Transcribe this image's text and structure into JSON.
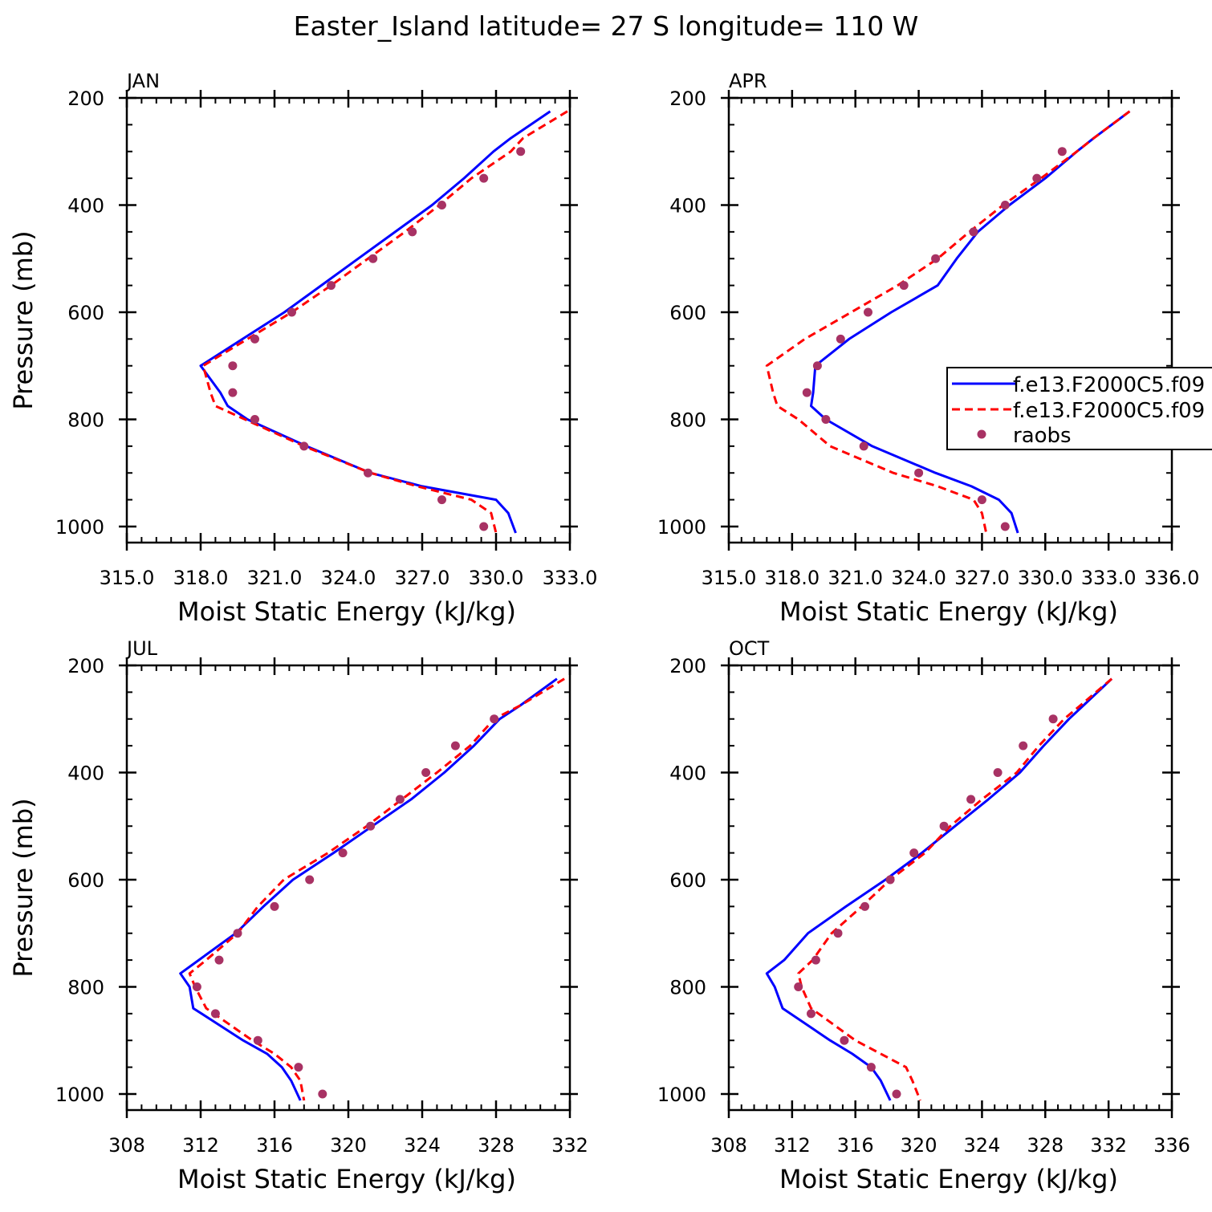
{
  "figure_title": "Easter_Island  latitude= 27 S longitude= 110 W",
  "legend": {
    "series": [
      {
        "label": "f.e13.F2000C5.f09",
        "style": "solid",
        "color": "#0000ff"
      },
      {
        "label": "f.e13.F2000C5.f09",
        "style": "dashed",
        "color": "#ff0000"
      },
      {
        "label": "raobs",
        "style": "dot",
        "color": "#a83264"
      }
    ]
  },
  "chart_data": [
    {
      "type": "line",
      "title": "JAN",
      "xlabel": "Moist Static Energy (kJ/kg)",
      "ylabel": "Pressure (mb)",
      "xlim": [
        315,
        333
      ],
      "ylim": [
        1030,
        200
      ],
      "xticks": [
        315,
        318,
        321,
        324,
        327,
        330,
        333
      ],
      "xticklabels": [
        "315.0",
        "318.0",
        "321.0",
        "324.0",
        "327.0",
        "330.0",
        "333.0"
      ],
      "yticks": [
        200,
        400,
        600,
        800,
        1000
      ],
      "yticklabels": [
        "200",
        "400",
        "600",
        "800",
        "1000"
      ],
      "series": [
        {
          "name": "f.e13.F2000C5.f09 (solid)",
          "p": [
            225,
            275,
            300,
            350,
            400,
            450,
            500,
            550,
            600,
            650,
            700,
            750,
            775,
            800,
            850,
            900,
            925,
            950,
            975,
            1012
          ],
          "mse": [
            332.2,
            330.6,
            329.9,
            328.7,
            327.4,
            325.9,
            324.4,
            322.9,
            321.4,
            319.7,
            318.0,
            318.8,
            319.1,
            319.9,
            322.3,
            324.9,
            327.0,
            330.0,
            330.5,
            330.8
          ]
        },
        {
          "name": "f.e13.F2000C5.f09 (dashed)",
          "p": [
            225,
            275,
            300,
            350,
            400,
            450,
            500,
            550,
            600,
            650,
            700,
            750,
            775,
            800,
            850,
            900,
            925,
            950,
            975,
            1012
          ],
          "mse": [
            332.9,
            331.1,
            330.6,
            329.0,
            327.7,
            326.3,
            324.8,
            323.3,
            321.7,
            319.9,
            318.1,
            318.4,
            318.6,
            319.8,
            322.2,
            324.9,
            326.8,
            329.0,
            329.8,
            330.0
          ]
        },
        {
          "name": "raobs",
          "p": [
            300,
            350,
            400,
            450,
            500,
            550,
            600,
            650,
            700,
            750,
            800,
            850,
            900,
            950,
            1000
          ],
          "mse": [
            331.0,
            329.5,
            327.8,
            326.6,
            325.0,
            323.3,
            321.7,
            320.2,
            319.3,
            319.3,
            320.2,
            322.2,
            324.8,
            327.8,
            329.5
          ]
        }
      ]
    },
    {
      "type": "line",
      "title": "APR",
      "xlabel": "Moist Static Energy (kJ/kg)",
      "ylabel": "",
      "xlim": [
        315,
        336
      ],
      "ylim": [
        1030,
        200
      ],
      "xticks": [
        315,
        318,
        321,
        324,
        327,
        330,
        333,
        336
      ],
      "xticklabels": [
        "315.0",
        "318.0",
        "321.0",
        "324.0",
        "327.0",
        "330.0",
        "333.0",
        "336.0"
      ],
      "yticks": [
        200,
        400,
        600,
        800,
        1000
      ],
      "yticklabels": [
        "200",
        "400",
        "600",
        "800",
        "1000"
      ],
      "series": [
        {
          "name": "f.e13.F2000C5.f09 (solid)",
          "p": [
            225,
            275,
            300,
            350,
            400,
            450,
            500,
            550,
            600,
            650,
            700,
            750,
            775,
            800,
            850,
            900,
            925,
            950,
            975,
            1012
          ],
          "mse": [
            334.0,
            332.3,
            331.5,
            330.0,
            328.3,
            326.8,
            325.8,
            324.9,
            322.7,
            320.7,
            319.1,
            319.0,
            318.9,
            319.6,
            321.8,
            324.8,
            326.5,
            327.8,
            328.4,
            328.7
          ]
        },
        {
          "name": "f.e13.F2000C5.f09 (dashed)",
          "p": [
            225,
            275,
            300,
            350,
            400,
            450,
            500,
            550,
            600,
            650,
            700,
            750,
            775,
            800,
            850,
            900,
            925,
            950,
            975,
            1012
          ],
          "mse": [
            334.0,
            332.3,
            331.5,
            329.8,
            328.0,
            326.4,
            324.9,
            323.0,
            320.8,
            318.6,
            316.8,
            317.1,
            317.3,
            318.3,
            319.8,
            322.8,
            324.9,
            326.6,
            327.0,
            327.2
          ]
        },
        {
          "name": "raobs",
          "p": [
            300,
            350,
            400,
            450,
            500,
            550,
            600,
            650,
            700,
            750,
            800,
            850,
            900,
            950,
            1000
          ],
          "mse": [
            330.8,
            329.6,
            328.1,
            326.6,
            324.8,
            323.3,
            321.6,
            320.3,
            319.2,
            318.7,
            319.6,
            321.4,
            324.0,
            327.0,
            328.1
          ]
        }
      ]
    },
    {
      "type": "line",
      "title": "JUL",
      "xlabel": "Moist Static Energy (kJ/kg)",
      "ylabel": "Pressure (mb)",
      "xlim": [
        308,
        332
      ],
      "ylim": [
        1030,
        200
      ],
      "xticks": [
        308,
        312,
        316,
        320,
        324,
        328,
        332
      ],
      "xticklabels": [
        "308",
        "312",
        "316",
        "320",
        "324",
        "328",
        "332"
      ],
      "yticks": [
        200,
        400,
        600,
        800,
        1000
      ],
      "yticklabels": [
        "200",
        "400",
        "600",
        "800",
        "1000"
      ],
      "series": [
        {
          "name": "f.e13.F2000C5.f09 (solid)",
          "p": [
            225,
            275,
            300,
            350,
            400,
            450,
            500,
            550,
            600,
            650,
            700,
            750,
            775,
            800,
            840,
            900,
            925,
            950,
            975,
            1012
          ],
          "mse": [
            331.3,
            329.3,
            328.2,
            326.8,
            325.2,
            323.4,
            321.3,
            319.2,
            317.0,
            315.4,
            313.9,
            311.9,
            310.9,
            311.4,
            311.6,
            314.3,
            315.6,
            316.4,
            316.9,
            317.4
          ]
        },
        {
          "name": "f.e13.F2000C5.f09 (dashed)",
          "p": [
            225,
            275,
            300,
            350,
            400,
            450,
            500,
            550,
            600,
            650,
            700,
            750,
            775,
            800,
            840,
            900,
            925,
            950,
            975,
            1012
          ],
          "mse": [
            331.7,
            329.3,
            327.9,
            326.6,
            324.8,
            322.9,
            321.0,
            318.9,
            316.5,
            315.1,
            314.0,
            312.3,
            311.4,
            311.7,
            312.3,
            314.8,
            316.0,
            316.9,
            317.4,
            317.6
          ]
        },
        {
          "name": "raobs",
          "p": [
            300,
            350,
            400,
            450,
            500,
            550,
            600,
            650,
            700,
            750,
            800,
            850,
            900,
            950,
            1000
          ],
          "mse": [
            327.9,
            325.8,
            324.2,
            322.8,
            321.2,
            319.7,
            317.9,
            316.0,
            314.0,
            313.0,
            311.8,
            312.8,
            315.1,
            317.3,
            318.6
          ]
        }
      ]
    },
    {
      "type": "line",
      "title": "OCT",
      "xlabel": "Moist Static Energy (kJ/kg)",
      "ylabel": "",
      "xlim": [
        308,
        336
      ],
      "ylim": [
        1030,
        200
      ],
      "xticks": [
        308,
        312,
        316,
        320,
        324,
        328,
        332,
        336
      ],
      "xticklabels": [
        "308",
        "312",
        "316",
        "320",
        "324",
        "328",
        "332",
        "336"
      ],
      "yticks": [
        200,
        400,
        600,
        800,
        1000
      ],
      "yticklabels": [
        "200",
        "400",
        "600",
        "800",
        "1000"
      ],
      "series": [
        {
          "name": "f.e13.F2000C5.f09 (solid)",
          "p": [
            225,
            275,
            300,
            350,
            400,
            450,
            500,
            550,
            600,
            650,
            700,
            750,
            775,
            800,
            840,
            900,
            925,
            950,
            975,
            1012
          ],
          "mse": [
            332.2,
            330.4,
            329.5,
            327.9,
            326.4,
            324.4,
            322.3,
            320.2,
            317.9,
            315.4,
            313.0,
            311.5,
            310.4,
            310.9,
            311.4,
            314.4,
            315.8,
            317.0,
            317.6,
            318.2
          ]
        },
        {
          "name": "f.e13.F2000C5.f09 (dashed)",
          "p": [
            225,
            275,
            300,
            350,
            400,
            450,
            500,
            550,
            600,
            650,
            700,
            750,
            775,
            800,
            840,
            900,
            925,
            950,
            975,
            1012
          ],
          "mse": [
            332.2,
            330.2,
            329.2,
            327.6,
            326.2,
            324.0,
            322.0,
            320.4,
            318.2,
            316.4,
            314.5,
            313.3,
            312.4,
            312.6,
            313.2,
            316.0,
            317.6,
            319.2,
            319.6,
            320.1
          ]
        },
        {
          "name": "raobs",
          "p": [
            300,
            350,
            400,
            450,
            500,
            550,
            600,
            650,
            700,
            750,
            800,
            850,
            900,
            950,
            1000
          ],
          "mse": [
            328.5,
            326.6,
            325.0,
            323.3,
            321.6,
            319.7,
            318.2,
            316.6,
            314.9,
            313.5,
            312.4,
            313.2,
            315.3,
            317.0,
            318.6
          ]
        }
      ]
    }
  ]
}
